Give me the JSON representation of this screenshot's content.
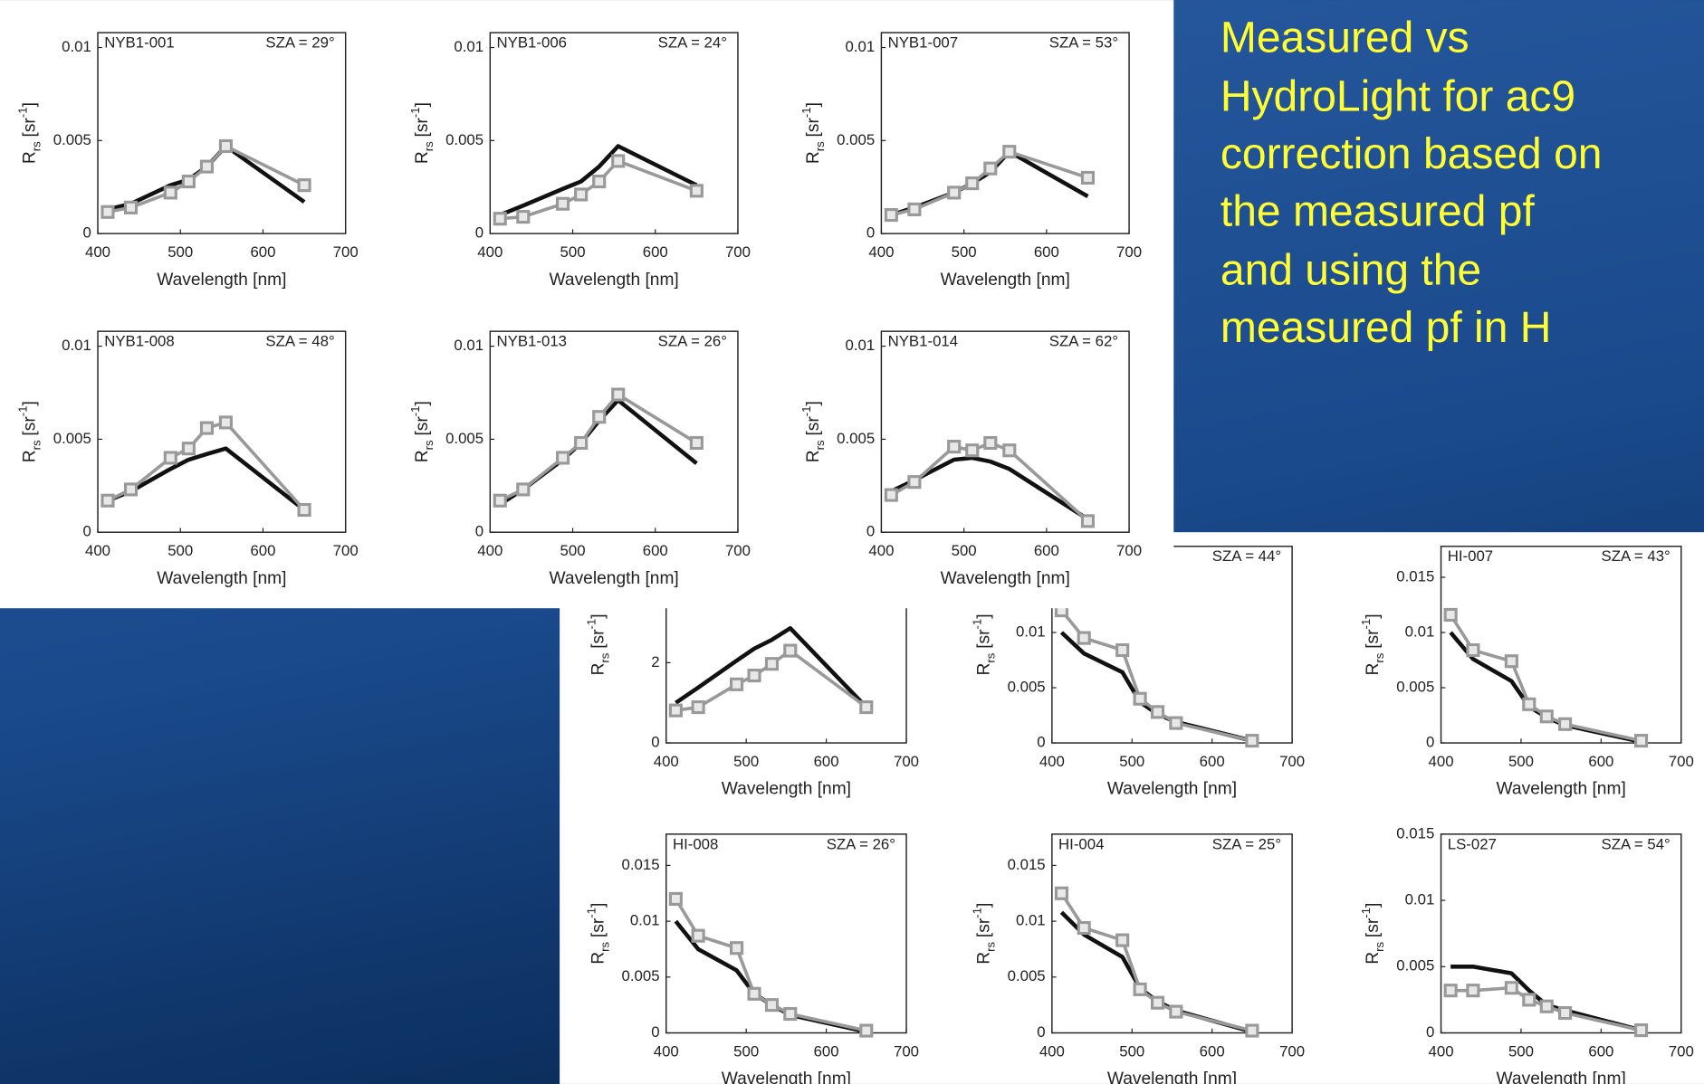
{
  "caption": {
    "lines": [
      "Measured vs",
      "HydroLight for ac9",
      "correction based on",
      "the measured pf",
      "and using the",
      "measured pf in H"
    ]
  },
  "chart_data": [
    {
      "type": "line",
      "title_left": "NYB1-001",
      "title_right": "SZA = 29°",
      "xlabel": "Wavelength [nm]",
      "ylabel": {
        "symbol": "R",
        "subscript": "rs",
        "unit": "[sr",
        "exponent": "-1",
        "close": "]"
      },
      "x": [
        412,
        440,
        488,
        510,
        532,
        555,
        650
      ],
      "xlim": [
        400,
        700
      ],
      "xticks": [
        400,
        500,
        600,
        700
      ],
      "ylim": [
        0,
        0.0108
      ],
      "yticks": [
        0,
        0.005,
        0.01
      ],
      "series": [
        {
          "color": "#111111",
          "values": [
            0.0013,
            0.0016,
            0.0026,
            0.0029,
            0.0036,
            0.0047,
            0.0017
          ]
        },
        {
          "color": "#999999",
          "marker": "square",
          "values": [
            0.00116,
            0.0014,
            0.0022,
            0.0028,
            0.0036,
            0.0047,
            0.0026
          ]
        }
      ]
    },
    {
      "type": "line",
      "title_left": "NYB1-006",
      "title_right": "SZA = 24°",
      "xlabel": "Wavelength [nm]",
      "ylabel": {
        "symbol": "R",
        "subscript": "rs",
        "unit": "[sr",
        "exponent": "-1",
        "close": "]"
      },
      "x": [
        412,
        440,
        488,
        510,
        532,
        555,
        650
      ],
      "xlim": [
        400,
        700
      ],
      "xticks": [
        400,
        500,
        600,
        700
      ],
      "ylim": [
        0,
        0.0108
      ],
      "yticks": [
        0,
        0.005,
        0.01
      ],
      "series": [
        {
          "color": "#111111",
          "values": [
            0.001,
            0.0015,
            0.0024,
            0.0028,
            0.0036,
            0.0047,
            0.0026
          ]
        },
        {
          "color": "#999999",
          "marker": "square",
          "values": [
            0.0008,
            0.0009,
            0.0016,
            0.0021,
            0.0028,
            0.0039,
            0.0023
          ]
        }
      ]
    },
    {
      "type": "line",
      "title_left": "NYB1-007",
      "title_right": "SZA = 53°",
      "xlabel": "Wavelength [nm]",
      "ylabel": {
        "symbol": "R",
        "subscript": "rs",
        "unit": "[sr",
        "exponent": "-1",
        "close": "]"
      },
      "x": [
        412,
        440,
        488,
        510,
        532,
        555,
        650
      ],
      "xlim": [
        400,
        700
      ],
      "xticks": [
        400,
        500,
        600,
        700
      ],
      "ylim": [
        0,
        0.0108
      ],
      "yticks": [
        0,
        0.005,
        0.01
      ],
      "series": [
        {
          "color": "#111111",
          "values": [
            0.001,
            0.0014,
            0.0022,
            0.0027,
            0.0033,
            0.0044,
            0.002
          ]
        },
        {
          "color": "#999999",
          "marker": "square",
          "values": [
            0.001,
            0.0013,
            0.0022,
            0.0027,
            0.0035,
            0.0044,
            0.003
          ]
        }
      ]
    },
    {
      "type": "line",
      "title_left": "NYB1-008",
      "title_right": "SZA = 48°",
      "xlabel": "Wavelength [nm]",
      "ylabel": {
        "symbol": "R",
        "subscript": "rs",
        "unit": "[sr",
        "exponent": "-1",
        "close": "]"
      },
      "x": [
        412,
        440,
        488,
        510,
        532,
        555,
        650
      ],
      "xlim": [
        400,
        700
      ],
      "xticks": [
        400,
        500,
        600,
        700
      ],
      "ylim": [
        0,
        0.0108
      ],
      "yticks": [
        0,
        0.005,
        0.01
      ],
      "series": [
        {
          "color": "#111111",
          "values": [
            0.0017,
            0.0022,
            0.0034,
            0.0039,
            0.0042,
            0.0045,
            0.0012
          ]
        },
        {
          "color": "#999999",
          "marker": "square",
          "values": [
            0.0017,
            0.0023,
            0.004,
            0.0045,
            0.0056,
            0.0059,
            0.0012
          ]
        }
      ]
    },
    {
      "type": "line",
      "title_left": "NYB1-013",
      "title_right": "SZA = 26°",
      "xlabel": "Wavelength [nm]",
      "ylabel": {
        "symbol": "R",
        "subscript": "rs",
        "unit": "[sr",
        "exponent": "-1",
        "close": "]"
      },
      "x": [
        412,
        440,
        488,
        510,
        532,
        555,
        650
      ],
      "xlim": [
        400,
        700
      ],
      "xticks": [
        400,
        500,
        600,
        700
      ],
      "ylim": [
        0,
        0.0108
      ],
      "yticks": [
        0,
        0.005,
        0.01
      ],
      "series": [
        {
          "color": "#111111",
          "values": [
            0.0015,
            0.0023,
            0.0039,
            0.0048,
            0.006,
            0.0071,
            0.0037
          ]
        },
        {
          "color": "#999999",
          "marker": "square",
          "values": [
            0.0017,
            0.0023,
            0.004,
            0.0048,
            0.0062,
            0.0074,
            0.0048
          ]
        }
      ]
    },
    {
      "type": "line",
      "title_left": "NYB1-014",
      "title_right": "SZA = 62°",
      "xlabel": "Wavelength [nm]",
      "ylabel": {
        "symbol": "R",
        "subscript": "rs",
        "unit": "[sr",
        "exponent": "-1",
        "close": "]"
      },
      "x": [
        412,
        440,
        488,
        510,
        532,
        555,
        650
      ],
      "xlim": [
        400,
        700
      ],
      "xticks": [
        400,
        500,
        600,
        700
      ],
      "ylim": [
        0,
        0.0108
      ],
      "yticks": [
        0,
        0.005,
        0.01
      ],
      "series": [
        {
          "color": "#111111",
          "values": [
            0.0022,
            0.0028,
            0.0039,
            0.004,
            0.0038,
            0.0034,
            0.0007
          ]
        },
        {
          "color": "#999999",
          "marker": "square",
          "values": [
            0.002,
            0.0027,
            0.0046,
            0.0044,
            0.0048,
            0.0044,
            0.0006
          ]
        }
      ]
    },
    {
      "type": "line",
      "xlabel": "Wavelength [nm]",
      "ylabel": {
        "symbol": "R",
        "subscript": "rs",
        "unit": "[sr",
        "exponent": "-1",
        "close": "]"
      },
      "x": [
        412,
        440,
        488,
        510,
        532,
        555,
        650
      ],
      "xlim": [
        400,
        700
      ],
      "xticks": [
        400,
        500,
        600,
        700
      ],
      "ylim": [
        0,
        4.9
      ],
      "yticks": [
        0,
        2
      ],
      "series": [
        {
          "color": "#111111",
          "values": [
            1.0,
            1.38,
            2.05,
            2.35,
            2.57,
            2.86,
            0.89
          ]
        },
        {
          "color": "#999999",
          "marker": "square",
          "values": [
            0.81,
            0.89,
            1.46,
            1.68,
            1.97,
            2.3,
            0.89
          ]
        }
      ]
    },
    {
      "type": "line",
      "title_right": "SZA = 44°",
      "xlabel": "Wavelength [nm]",
      "ylabel": {
        "symbol": "R",
        "subscript": "rs",
        "unit": "[sr",
        "exponent": "-1",
        "close": "]"
      },
      "x": [
        412,
        440,
        488,
        510,
        532,
        555,
        650
      ],
      "xlim": [
        400,
        700
      ],
      "xticks": [
        400,
        500,
        600,
        700
      ],
      "ylim": [
        0,
        0.0178
      ],
      "yticks": [
        0,
        0.005,
        0.01
      ],
      "series": [
        {
          "color": "#111111",
          "values": [
            0.01,
            0.0081,
            0.0064,
            0.0037,
            0.0026,
            0.0019,
            0.0002
          ]
        },
        {
          "color": "#999999",
          "marker": "square",
          "values": [
            0.012,
            0.0095,
            0.0084,
            0.004,
            0.0028,
            0.0018,
            0.0002
          ]
        }
      ]
    },
    {
      "type": "line",
      "title_left": "HI-007",
      "title_right": "SZA = 43°",
      "xlabel": "Wavelength [nm]",
      "ylabel": {
        "symbol": "R",
        "subscript": "rs",
        "unit": "[sr",
        "exponent": "-1",
        "close": "]"
      },
      "x": [
        412,
        440,
        488,
        510,
        532,
        555,
        650
      ],
      "xlim": [
        400,
        700
      ],
      "xticks": [
        400,
        500,
        600,
        700
      ],
      "ylim": [
        0,
        0.0178
      ],
      "yticks": [
        0,
        0.005,
        0.01,
        0.015
      ],
      "series": [
        {
          "color": "#111111",
          "values": [
            0.01,
            0.0076,
            0.0056,
            0.0033,
            0.0023,
            0.0016,
            0.0001
          ]
        },
        {
          "color": "#999999",
          "marker": "square",
          "values": [
            0.0116,
            0.0084,
            0.0074,
            0.0035,
            0.0024,
            0.0017,
            0.0002
          ]
        }
      ]
    },
    {
      "type": "line",
      "title_left": "HI-008",
      "title_right": "SZA = 26°",
      "xlabel": "Wavelength [nm]",
      "ylabel": {
        "symbol": "R",
        "subscript": "rs",
        "unit": "[sr",
        "exponent": "-1",
        "close": "]"
      },
      "x": [
        412,
        440,
        488,
        510,
        532,
        555,
        650
      ],
      "xlim": [
        400,
        700
      ],
      "xticks": [
        400,
        500,
        600,
        700
      ],
      "ylim": [
        0,
        0.0178
      ],
      "yticks": [
        0,
        0.005,
        0.01,
        0.015
      ],
      "series": [
        {
          "color": "#111111",
          "values": [
            0.01,
            0.0075,
            0.0056,
            0.0035,
            0.0025,
            0.0016,
            0.0001
          ]
        },
        {
          "color": "#999999",
          "marker": "square",
          "values": [
            0.012,
            0.0087,
            0.0076,
            0.0035,
            0.0025,
            0.0017,
            0.0002
          ]
        }
      ]
    },
    {
      "type": "line",
      "title_left": "HI-004",
      "title_right": "SZA = 25°",
      "xlabel": "Wavelength [nm]",
      "ylabel": {
        "symbol": "R",
        "subscript": "rs",
        "unit": "[sr",
        "exponent": "-1",
        "close": "]"
      },
      "x": [
        412,
        440,
        488,
        510,
        532,
        555,
        650
      ],
      "xlim": [
        400,
        700
      ],
      "xticks": [
        400,
        500,
        600,
        700
      ],
      "ylim": [
        0,
        0.0178
      ],
      "yticks": [
        0,
        0.005,
        0.01,
        0.015
      ],
      "series": [
        {
          "color": "#111111",
          "values": [
            0.0108,
            0.0088,
            0.0068,
            0.004,
            0.0028,
            0.002,
            0.0001
          ]
        },
        {
          "color": "#999999",
          "marker": "square",
          "values": [
            0.0125,
            0.0094,
            0.0083,
            0.0039,
            0.0027,
            0.0019,
            0.0002
          ]
        }
      ]
    },
    {
      "type": "line",
      "title_left": "LS-027",
      "title_right": "SZA = 54°",
      "xlabel": "Wavelength [nm]",
      "ylabel": {
        "symbol": "R",
        "subscript": "rs",
        "unit": "[sr",
        "exponent": "-1",
        "close": "]"
      },
      "x": [
        412,
        440,
        488,
        510,
        532,
        555,
        650
      ],
      "xlim": [
        400,
        700
      ],
      "xticks": [
        400,
        500,
        600,
        700
      ],
      "ylim": [
        0,
        0.015
      ],
      "yticks": [
        0,
        0.005,
        0.01,
        0.015
      ],
      "series": [
        {
          "color": "#111111",
          "values": [
            0.005,
            0.005,
            0.0045,
            0.0032,
            0.0021,
            0.0017,
            0.0002
          ]
        },
        {
          "color": "#999999",
          "marker": "square",
          "values": [
            0.0032,
            0.0032,
            0.0034,
            0.0025,
            0.002,
            0.0015,
            0.0002
          ]
        }
      ]
    }
  ]
}
